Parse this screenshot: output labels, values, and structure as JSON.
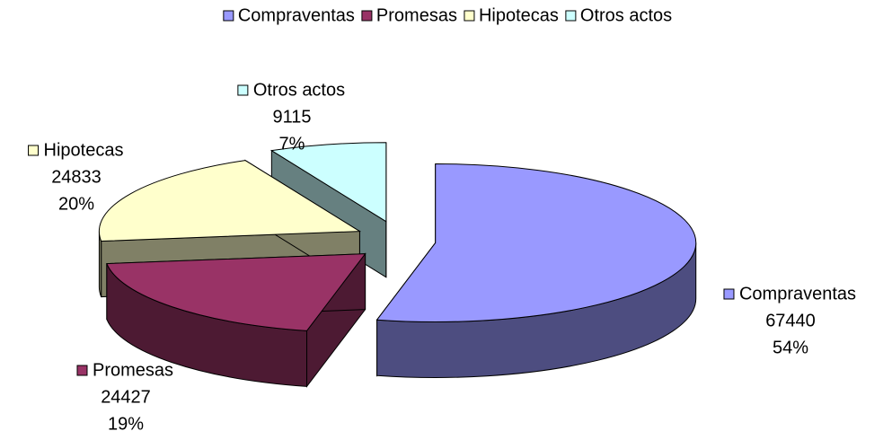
{
  "chart_data": {
    "type": "pie3d",
    "categories": [
      "Compraventas",
      "Promesas",
      "Hipotecas",
      "Otros actos"
    ],
    "values": [
      67440,
      24427,
      24833,
      9115
    ],
    "percent_labels": [
      "54%",
      "19%",
      "20%",
      "7%"
    ],
    "colors": [
      "#9999ff",
      "#993366",
      "#ffffcc",
      "#ccffff"
    ],
    "legend": "top"
  }
}
